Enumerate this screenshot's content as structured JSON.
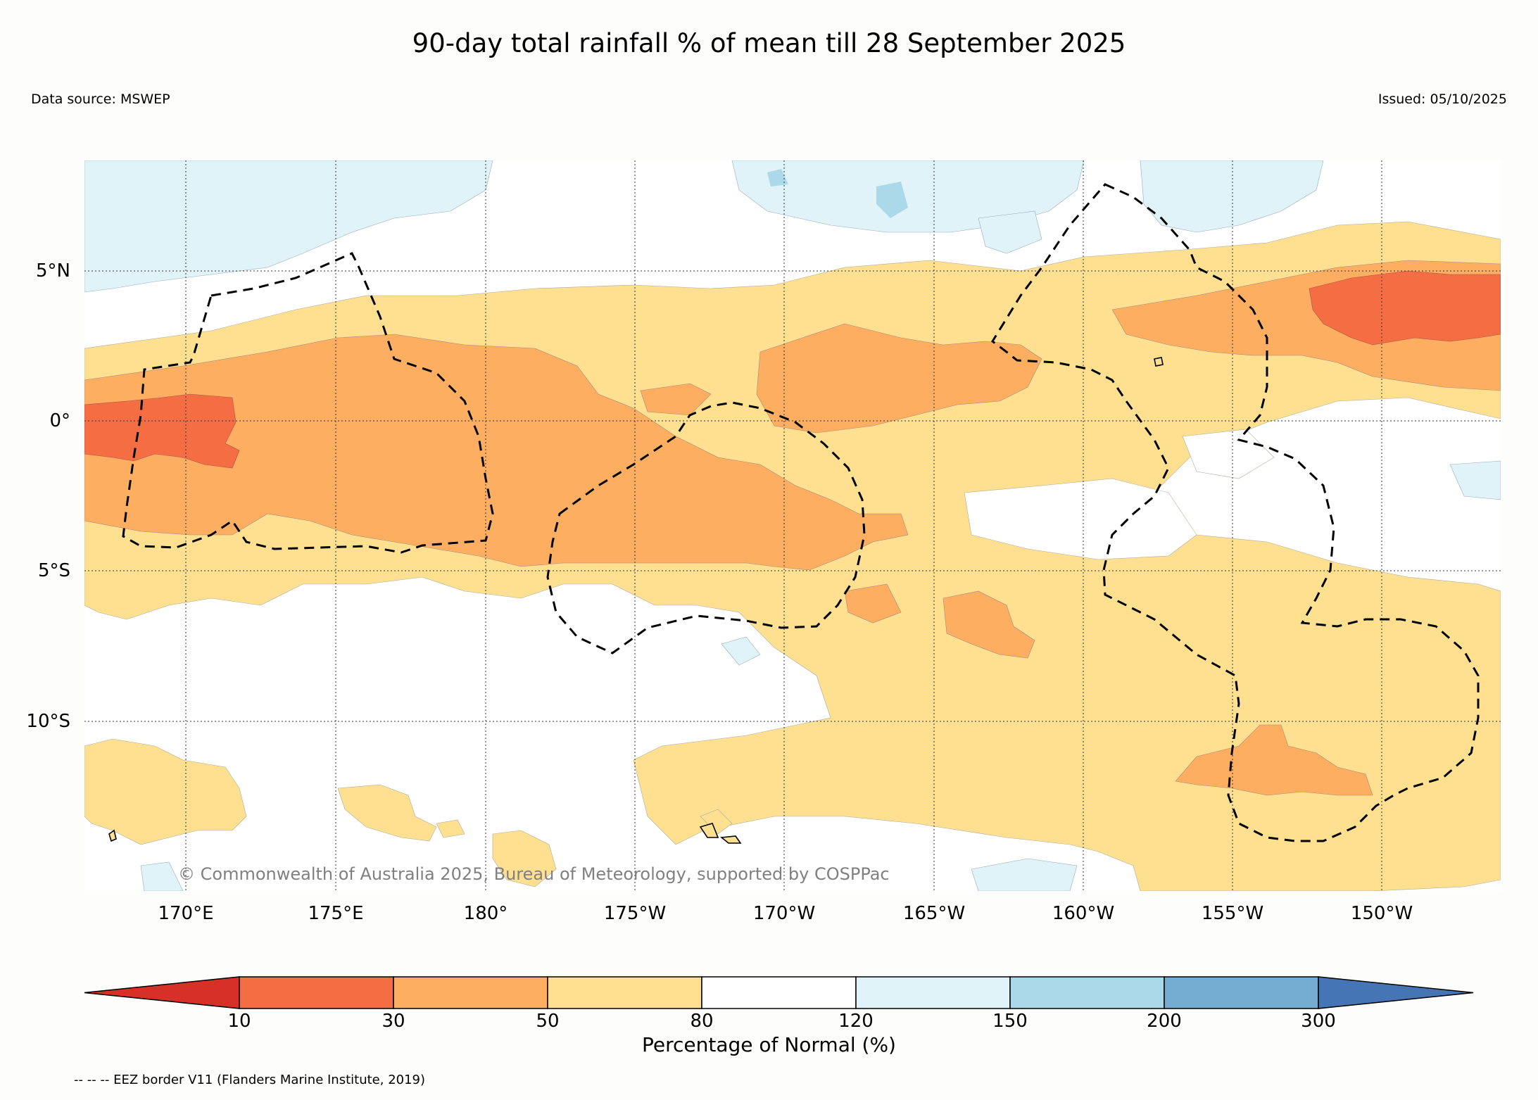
{
  "header": {
    "title": "90-day total rainfall % of mean till 28 September 2025",
    "source": "Data source: MSWEP",
    "issued": "Issued: 05/10/2025"
  },
  "map": {
    "lat_labels": [
      "5°N",
      "0°",
      "5°S",
      "10°S"
    ],
    "lon_labels": [
      "170°E",
      "175°E",
      "180°",
      "175°W",
      "170°W",
      "165°W",
      "160°W",
      "155°W",
      "150°W"
    ],
    "copyright": "© Commonwealth of Australia 2025, Bureau of Meteorology, supported by COSPPac"
  },
  "legend": {
    "title": "Percentage of Normal (%)",
    "ticks": [
      "10",
      "30",
      "50",
      "80",
      "120",
      "150",
      "200",
      "300"
    ],
    "colors": [
      "#d73027",
      "#f46d43",
      "#fdae61",
      "#fee090",
      "#ffffff",
      "#e0f3f8",
      "#abd9e9",
      "#74add1",
      "#4575b4"
    ]
  },
  "footnote": "-- -- -- EEZ border V11 (Flanders Marine Institute, 2019)"
}
